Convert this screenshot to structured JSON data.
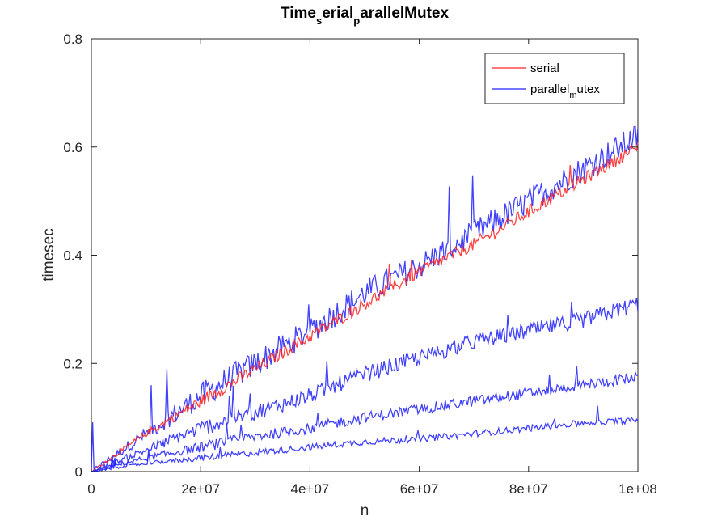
{
  "chart_data": {
    "type": "line",
    "title": {
      "base1": "Time",
      "sub1": "s",
      "base2": "erial",
      "sub2": "p",
      "base3": "arallelMutex"
    },
    "xlabel": "n",
    "ylabel": "timesec",
    "xlim": [
      0,
      100000000
    ],
    "ylim": [
      0,
      0.8
    ],
    "xticks": [
      0,
      20000000,
      40000000,
      60000000,
      80000000,
      100000000
    ],
    "xtick_labels": [
      "0",
      "2e+07",
      "4e+07",
      "6e+07",
      "8e+07",
      "1e+08"
    ],
    "yticks": [
      0,
      0.2,
      0.4,
      0.6,
      0.8
    ],
    "ytick_labels": [
      "0",
      "0.2",
      "0.4",
      "0.6",
      "0.8"
    ],
    "grid": false,
    "legend_position": "top-right",
    "legend": [
      {
        "base": "serial",
        "sub": "",
        "rest": "",
        "color": "#ff2020"
      },
      {
        "base": "parallel",
        "sub": "m",
        "rest": "utex",
        "color": "#2020ff"
      }
    ],
    "series": [
      {
        "legend_index": 0,
        "color": "#ff2020",
        "x": [
          0,
          10000000,
          20000000,
          30000000,
          40000000,
          50000000,
          60000000,
          70000000,
          80000000,
          90000000,
          100000000
        ],
        "y": [
          0,
          0.07,
          0.13,
          0.19,
          0.25,
          0.31,
          0.37,
          0.42,
          0.48,
          0.54,
          0.6
        ],
        "noise": 0.012
      },
      {
        "legend_index": 1,
        "color": "#2020ff",
        "x": [
          0,
          10000000,
          20000000,
          30000000,
          40000000,
          50000000,
          60000000,
          70000000,
          80000000,
          90000000,
          100000000
        ],
        "y": [
          0,
          0.07,
          0.14,
          0.2,
          0.26,
          0.33,
          0.38,
          0.44,
          0.5,
          0.56,
          0.62
        ],
        "noise": 0.025
      },
      {
        "legend_index": 1,
        "color": "#2020ff",
        "x": [
          0,
          10000000,
          20000000,
          30000000,
          40000000,
          50000000,
          60000000,
          70000000,
          80000000,
          90000000,
          100000000
        ],
        "y": [
          0,
          0.04,
          0.08,
          0.11,
          0.14,
          0.18,
          0.21,
          0.24,
          0.26,
          0.28,
          0.31
        ],
        "noise": 0.015
      },
      {
        "legend_index": 1,
        "color": "#2020ff",
        "x": [
          0,
          10000000,
          20000000,
          30000000,
          40000000,
          50000000,
          60000000,
          70000000,
          80000000,
          90000000,
          100000000
        ],
        "y": [
          0,
          0.025,
          0.045,
          0.065,
          0.08,
          0.1,
          0.115,
          0.13,
          0.145,
          0.16,
          0.175
        ],
        "noise": 0.01
      },
      {
        "legend_index": 1,
        "color": "#2020ff",
        "x": [
          0,
          10000000,
          20000000,
          30000000,
          40000000,
          50000000,
          60000000,
          70000000,
          80000000,
          90000000,
          100000000
        ],
        "y": [
          0,
          0.015,
          0.025,
          0.035,
          0.045,
          0.055,
          0.06,
          0.07,
          0.08,
          0.09,
          0.095
        ],
        "noise": 0.006
      }
    ]
  }
}
